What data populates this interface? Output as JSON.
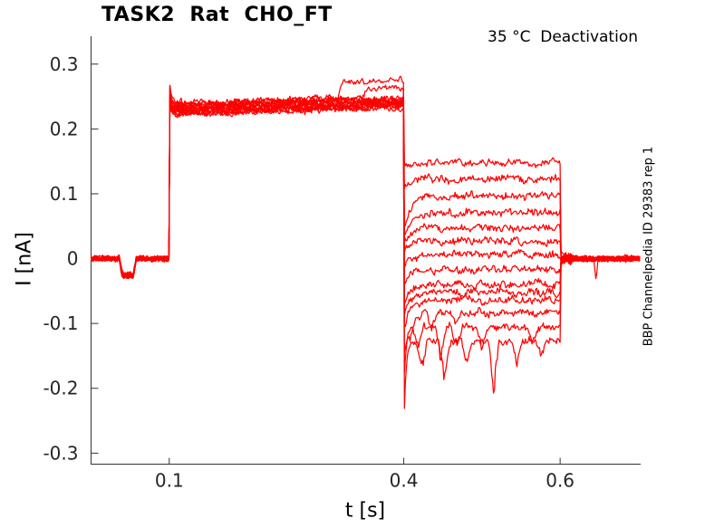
{
  "chart_data": {
    "type": "line",
    "title": "TASK2  Rat  CHO_FT",
    "annotation": "35 °C  Deactivation",
    "xlabel": "t [s]",
    "ylabel": "I [nA]",
    "side_note": "BBP Channelpedia ID 29383 rep 1",
    "grid": false,
    "legend": null,
    "line_color": "#ff0000",
    "axis_color": "#333333",
    "tick_label_color": "#262626",
    "xlim": [
      0,
      0.703
    ],
    "ylim": [
      -0.317,
      0.343
    ],
    "xticks": {
      "values": [
        0.1,
        0.4,
        0.6
      ],
      "labels": [
        "0.1",
        "0.4",
        "0.6"
      ]
    },
    "yticks": {
      "values": [
        0.3,
        0.2,
        0.1,
        0,
        -0.1,
        -0.2,
        -0.3
      ],
      "labels": [
        "0.3",
        "0.2",
        "0.1",
        "0",
        "-0.1",
        "-0.2",
        "-0.3"
      ]
    },
    "protocol": {
      "t_start": 0,
      "step_on": 0.1,
      "step_off": 0.4,
      "tail_end": 0.6,
      "t_end": 0.703,
      "baseline": 0,
      "pulse_drift": 0.011,
      "pulse_spike": {
        "amp": 0.038,
        "tau": 0.0025
      },
      "pre_pulse_blip": {
        "t1": 0.036,
        "t2": 0.058,
        "depth": -0.026,
        "edge": 0.004
      },
      "post_blip": {
        "t": 0.646,
        "depth": -0.032,
        "halfwidth": 0.003,
        "sweep": 6
      }
    },
    "sweeps": [
      {
        "tail": 0.148,
        "pulse": 0.239,
        "onset": -0.006,
        "tau": 0.008,
        "rise": {
          "t": 0.315,
          "level": 0.274
        },
        "dips": []
      },
      {
        "tail": 0.123,
        "pulse": 0.2377,
        "onset": -0.008,
        "tau": 0.008,
        "rise": {
          "t": 0.347,
          "level": 0.263
        },
        "dips": []
      },
      {
        "tail": 0.097,
        "pulse": 0.2364,
        "onset": -0.055,
        "tau": 0.009,
        "rise": null,
        "dips": []
      },
      {
        "tail": 0.071,
        "pulse": 0.2351,
        "onset": -0.042,
        "tau": 0.009,
        "rise": null,
        "dips": []
      },
      {
        "tail": 0.047,
        "pulse": 0.2338,
        "onset": -0.02,
        "tau": 0.008,
        "rise": null,
        "dips": []
      },
      {
        "tail": 0.027,
        "pulse": 0.2325,
        "onset": -0.016,
        "tau": 0.008,
        "rise": null,
        "dips": []
      },
      {
        "tail": 0.006,
        "pulse": 0.2312,
        "onset": -0.02,
        "tau": 0.008,
        "rise": null,
        "dips": []
      },
      {
        "tail": -0.017,
        "pulse": 0.2299,
        "onset": -0.025,
        "tau": 0.008,
        "rise": null,
        "dips": []
      },
      {
        "tail": -0.04,
        "pulse": 0.2286,
        "onset": -0.03,
        "tau": 0.008,
        "rise": null,
        "dips": []
      },
      {
        "tail": -0.052,
        "pulse": 0.2273,
        "onset": -0.036,
        "tau": 0.008,
        "rise": null,
        "dips": []
      },
      {
        "tail": -0.064,
        "pulse": 0.226,
        "onset": -0.045,
        "tau": 0.008,
        "rise": null,
        "dips": []
      },
      {
        "tail": -0.083,
        "pulse": 0.2247,
        "onset": -0.062,
        "tau": 0.007,
        "dips": [
          [
            0.408,
            0.018
          ],
          [
            0.436,
            0.022
          ],
          [
            0.466,
            0.014
          ]
        ],
        "rise": null
      },
      {
        "tail": -0.105,
        "pulse": 0.2234,
        "onset": -0.1,
        "tau": 0.003,
        "dips": [
          [
            0.418,
            0.034
          ],
          [
            0.447,
            0.046
          ],
          [
            0.468,
            0.028
          ],
          [
            0.5,
            0.034
          ],
          [
            0.565,
            0.028
          ]
        ],
        "rise": null
      },
      {
        "tail": -0.128,
        "pulse": 0.2221,
        "onset": -0.136,
        "tau": 0.0025,
        "dips": [
          [
            0.423,
            0.04
          ],
          [
            0.452,
            0.055
          ],
          [
            0.481,
            0.034
          ],
          [
            0.515,
            0.072
          ],
          [
            0.545,
            0.03
          ],
          [
            0.576,
            0.024
          ]
        ],
        "rise": null
      }
    ],
    "synth": {
      "dt": 0.0012,
      "seed": 20293,
      "rise_ramp": 0.006,
      "dip_halfwidth": 0.007,
      "noise": {
        "baseline": 0.0032,
        "pulse": 0.0042,
        "tail": 0.0048,
        "post": 0.0032,
        "post_burst": 0.0065,
        "post_burst_until": 0.615
      }
    }
  }
}
